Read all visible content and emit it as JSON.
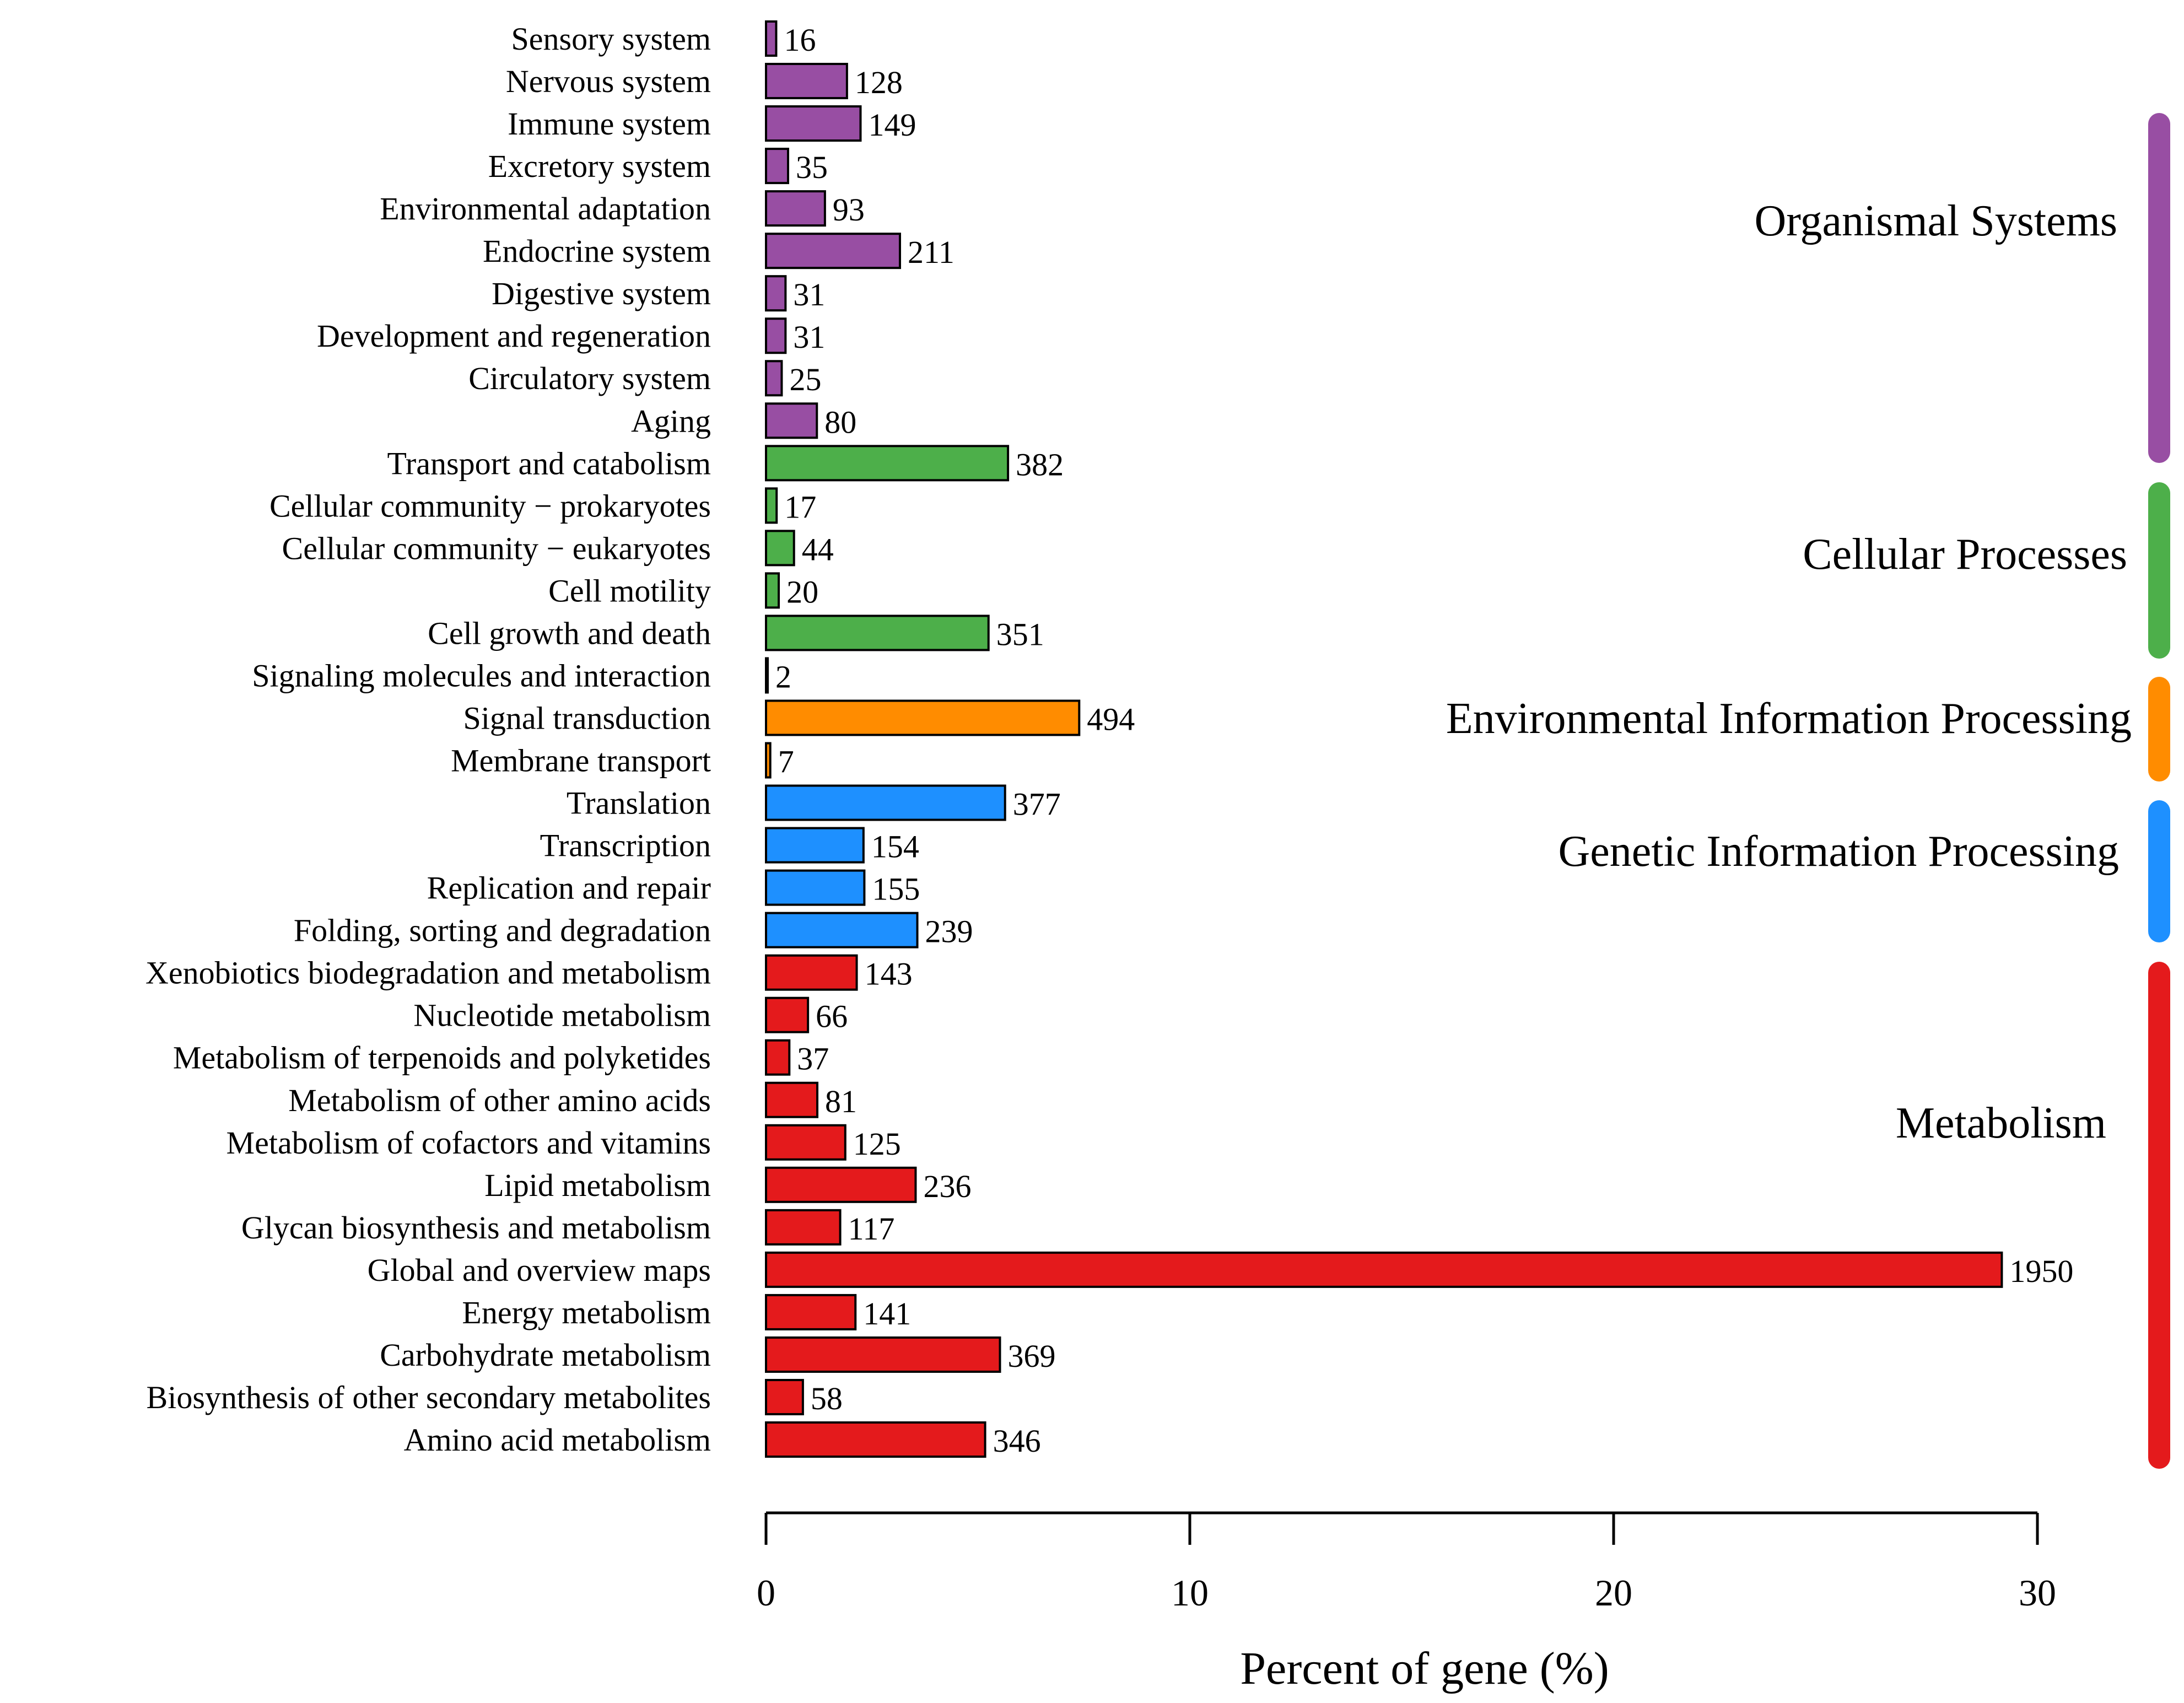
{
  "chart_data": {
    "type": "bar",
    "orientation": "horizontal",
    "title": "",
    "xlabel": "Percent of gene (%)",
    "ylabel": "",
    "xlim": [
      0,
      30
    ],
    "x_ticks": [
      "0",
      "10",
      "20",
      "30"
    ],
    "grid": false,
    "groups": [
      {
        "name": "Organismal Systems",
        "color": "#984EA3"
      },
      {
        "name": "Cellular Processes",
        "color": "#4DAF4A"
      },
      {
        "name": "Environmental Information Processing",
        "color": "#FF8C00"
      },
      {
        "name": "Genetic Information Processing",
        "color": "#1E90FF"
      },
      {
        "name": "Metabolism",
        "color": "#E41A1C"
      }
    ],
    "bars": [
      {
        "label": "Sensory system",
        "group": "Organismal Systems",
        "count": 16,
        "percent": 0.24
      },
      {
        "label": "Nervous system",
        "group": "Organismal Systems",
        "count": 128,
        "percent": 1.91
      },
      {
        "label": "Immune system",
        "group": "Organismal Systems",
        "count": 149,
        "percent": 2.23
      },
      {
        "label": "Excretory system",
        "group": "Organismal Systems",
        "count": 35,
        "percent": 0.52
      },
      {
        "label": "Environmental adaptation",
        "group": "Organismal Systems",
        "count": 93,
        "percent": 1.39
      },
      {
        "label": "Endocrine system",
        "group": "Organismal Systems",
        "count": 211,
        "percent": 3.16
      },
      {
        "label": "Digestive system",
        "group": "Organismal Systems",
        "count": 31,
        "percent": 0.46
      },
      {
        "label": "Development and regeneration",
        "group": "Organismal Systems",
        "count": 31,
        "percent": 0.46
      },
      {
        "label": "Circulatory system",
        "group": "Organismal Systems",
        "count": 25,
        "percent": 0.37
      },
      {
        "label": "Aging",
        "group": "Organismal Systems",
        "count": 80,
        "percent": 1.2
      },
      {
        "label": "Transport and catabolism",
        "group": "Cellular Processes",
        "count": 382,
        "percent": 5.71
      },
      {
        "label": "Cellular community − prokaryotes",
        "group": "Cellular Processes",
        "count": 17,
        "percent": 0.25
      },
      {
        "label": "Cellular community − eukaryotes",
        "group": "Cellular Processes",
        "count": 44,
        "percent": 0.66
      },
      {
        "label": "Cell motility",
        "group": "Cellular Processes",
        "count": 20,
        "percent": 0.3
      },
      {
        "label": "Cell growth and death",
        "group": "Cellular Processes",
        "count": 351,
        "percent": 5.25
      },
      {
        "label": "Signaling molecules and interaction",
        "group": "Environmental Information Processing",
        "count": 2,
        "percent": 0.03
      },
      {
        "label": "Signal transduction",
        "group": "Environmental Information Processing",
        "count": 494,
        "percent": 7.39
      },
      {
        "label": "Membrane transport",
        "group": "Environmental Information Processing",
        "count": 7,
        "percent": 0.1
      },
      {
        "label": "Translation",
        "group": "Genetic Information Processing",
        "count": 377,
        "percent": 5.64
      },
      {
        "label": "Transcription",
        "group": "Genetic Information Processing",
        "count": 154,
        "percent": 2.3
      },
      {
        "label": "Replication and repair",
        "group": "Genetic Information Processing",
        "count": 155,
        "percent": 2.32
      },
      {
        "label": "Folding, sorting and degradation",
        "group": "Genetic Information Processing",
        "count": 239,
        "percent": 3.57
      },
      {
        "label": "Xenobiotics biodegradation and metabolism",
        "group": "Metabolism",
        "count": 143,
        "percent": 2.14
      },
      {
        "label": "Nucleotide metabolism",
        "group": "Metabolism",
        "count": 66,
        "percent": 0.99
      },
      {
        "label": "Metabolism of terpenoids and polyketides",
        "group": "Metabolism",
        "count": 37,
        "percent": 0.55
      },
      {
        "label": "Metabolism of other amino acids",
        "group": "Metabolism",
        "count": 81,
        "percent": 1.21
      },
      {
        "label": "Metabolism of cofactors and vitamins",
        "group": "Metabolism",
        "count": 125,
        "percent": 1.87
      },
      {
        "label": "Lipid metabolism",
        "group": "Metabolism",
        "count": 236,
        "percent": 3.53
      },
      {
        "label": "Glycan biosynthesis and metabolism",
        "group": "Metabolism",
        "count": 117,
        "percent": 1.75
      },
      {
        "label": "Global and overview maps",
        "group": "Metabolism",
        "count": 1950,
        "percent": 29.16
      },
      {
        "label": "Energy metabolism",
        "group": "Metabolism",
        "count": 141,
        "percent": 2.11
      },
      {
        "label": "Carbohydrate metabolism",
        "group": "Metabolism",
        "count": 369,
        "percent": 5.52
      },
      {
        "label": "Biosynthesis of other secondary metabolites",
        "group": "Metabolism",
        "count": 58,
        "percent": 0.87
      },
      {
        "label": "Amino acid metabolism",
        "group": "Metabolism",
        "count": 346,
        "percent": 5.17
      }
    ]
  }
}
